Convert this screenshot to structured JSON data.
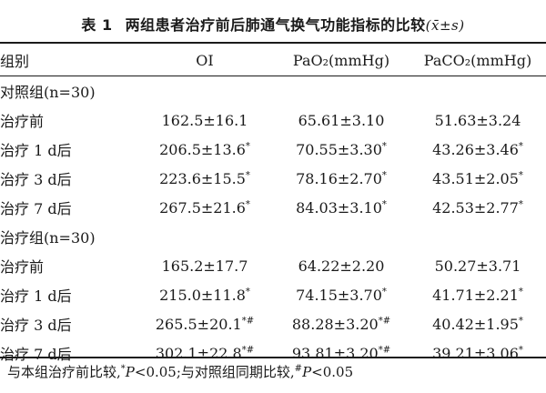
{
  "title": {
    "number": "表 1",
    "text": "两组患者治疗前后肺通气换气功能指标的比较",
    "stat": "(x̄±s)"
  },
  "table": {
    "headers": [
      "组别",
      "OI",
      "PaO₂(mmHg)",
      "PaCO₂(mmHg)"
    ],
    "groups": [
      {
        "label": "对照组(n=30)",
        "rows": [
          {
            "label": "治疗前",
            "oi": "162.5±16.1",
            "oi_mark": "",
            "pao2": "65.61±3.10",
            "pao2_mark": "",
            "paco2": "51.63±3.24",
            "paco2_mark": ""
          },
          {
            "label": "治疗 1 d后",
            "oi": "206.5±13.6",
            "oi_mark": "*",
            "pao2": "70.55±3.30",
            "pao2_mark": "*",
            "paco2": "43.26±3.46",
            "paco2_mark": "*"
          },
          {
            "label": "治疗 3 d后",
            "oi": "223.6±15.5",
            "oi_mark": "*",
            "pao2": "78.16±2.70",
            "pao2_mark": "*",
            "paco2": "43.51±2.05",
            "paco2_mark": "*"
          },
          {
            "label": "治疗 7 d后",
            "oi": "267.5±21.6",
            "oi_mark": "*",
            "pao2": "84.03±3.10",
            "pao2_mark": "*",
            "paco2": "42.53±2.77",
            "paco2_mark": "*"
          }
        ]
      },
      {
        "label": "治疗组(n=30)",
        "rows": [
          {
            "label": "治疗前",
            "oi": "165.2±17.7",
            "oi_mark": "",
            "pao2": "64.22±2.20",
            "pao2_mark": "",
            "paco2": "50.27±3.71",
            "paco2_mark": ""
          },
          {
            "label": "治疗 1 d后",
            "oi": "215.0±11.8",
            "oi_mark": "*",
            "pao2": "74.15±3.70",
            "pao2_mark": "*",
            "paco2": "41.71±2.21",
            "paco2_mark": "*"
          },
          {
            "label": "治疗 3 d后",
            "oi": "265.5±20.1",
            "oi_mark": "*#",
            "pao2": "88.28±3.20",
            "pao2_mark": "*#",
            "paco2": "40.42±1.95",
            "paco2_mark": "*"
          },
          {
            "label": "治疗 7 d后",
            "oi": "302.1±22.8",
            "oi_mark": "*#",
            "pao2": "93.81±3.20",
            "pao2_mark": "*#",
            "paco2": "39.21±3.06",
            "paco2_mark": "*"
          }
        ]
      }
    ]
  },
  "note": {
    "part1": "与本组治疗前比较,",
    "mark1": "*",
    "p1": "P",
    "part2": "<0.05;与对照组同期比较,",
    "mark2": "#",
    "p2": "P",
    "part3": "<0.05"
  }
}
